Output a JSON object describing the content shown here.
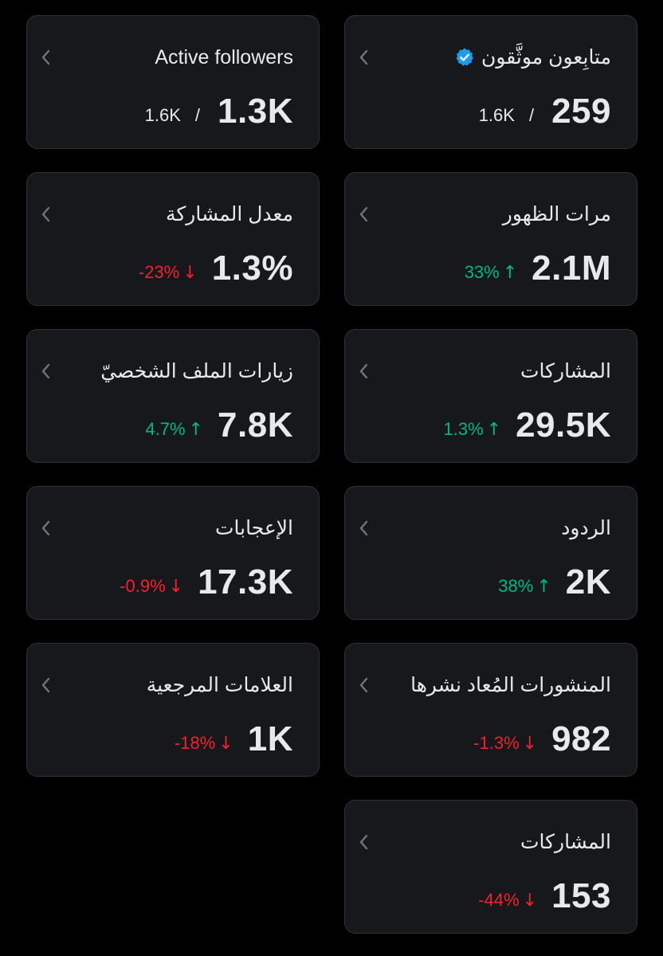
{
  "colors": {
    "background": "#000000",
    "card_bg": "#16181c",
    "card_border": "#2f3336",
    "text": "#e7e9ea",
    "positive": "#00ba7c",
    "negative": "#f4212e",
    "verified_badge": "#1d9bf0"
  },
  "cards": {
    "verified_followers": {
      "title": "متابِعون موثَّقون",
      "icon": "verified-badge-icon",
      "value": "259",
      "total": "1.6K",
      "separator": "/"
    },
    "active_followers": {
      "title": "Active followers",
      "value": "1.3K",
      "total": "1.6K",
      "separator": "/"
    },
    "impressions": {
      "title": "مرات الظهور",
      "value": "2.1M",
      "change": "33%",
      "direction": "up"
    },
    "engagement_rate": {
      "title": "معدل المشاركة",
      "value": "1.3%",
      "change": "-23%",
      "direction": "down"
    },
    "engagements": {
      "title": "المشاركات",
      "value": "29.5K",
      "change": "1.3%",
      "direction": "up"
    },
    "profile_visits": {
      "title": "زيارات الملف الشخصيّ",
      "value": "7.8K",
      "change": "4.7%",
      "direction": "up"
    },
    "replies": {
      "title": "الردود",
      "value": "2K",
      "change": "38%",
      "direction": "up"
    },
    "likes": {
      "title": "الإعجابات",
      "value": "17.3K",
      "change": "-0.9%",
      "direction": "down"
    },
    "reposts": {
      "title": "المنشورات المُعاد نشرها",
      "value": "982",
      "change": "-1.3%",
      "direction": "down"
    },
    "bookmarks": {
      "title": "العلامات المرجعية",
      "value": "1K",
      "change": "-18%",
      "direction": "down"
    },
    "shares": {
      "title": "المشاركات",
      "value": "153",
      "change": "-44%",
      "direction": "down"
    }
  },
  "arrows": {
    "up": "↑",
    "down": "↓"
  }
}
